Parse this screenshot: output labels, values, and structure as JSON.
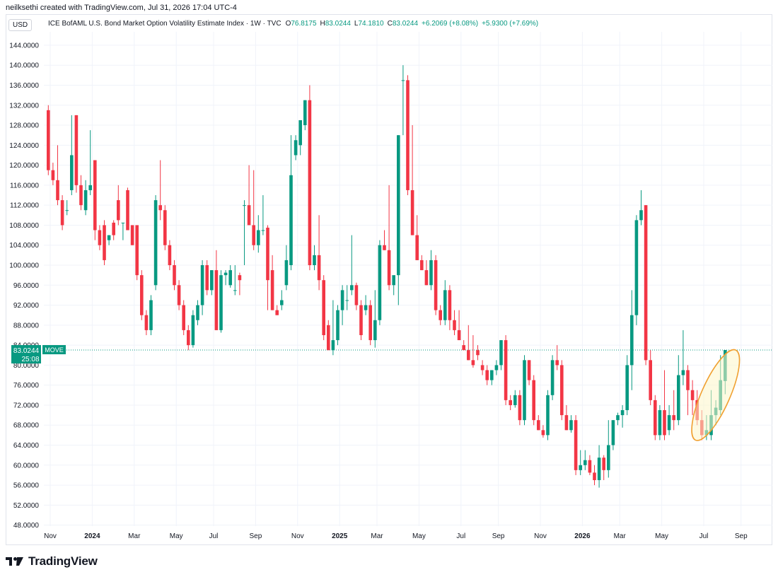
{
  "header": {
    "credit": "neilksethi created with TradingView.com, Jul 31, 2026 17:04 UTC-4",
    "currency": "USD"
  },
  "legend": {
    "name": "ICE BofAML U.S. Bond Market Option Volatility Estimate Index · 1W · TVC",
    "o_label": "O",
    "o_value": "76.8175",
    "h_label": "H",
    "h_value": "83.0244",
    "l_label": "L",
    "l_value": "74.1810",
    "c_label": "C",
    "c_value": "83.0244",
    "change": "+6.2069 (+8.08%)",
    "change2": "+5.9300 (+7.69%)"
  },
  "price_tag": {
    "value": "83.0244",
    "symbol": "MOVE",
    "countdown": "25:08"
  },
  "brand": {
    "logo_text": "TradingView",
    "logo_icon": "tradingview-logo-icon"
  },
  "colors": {
    "up": "#089981",
    "down": "#f23645",
    "grid": "#f0f3fa",
    "highlight_stroke": "#f0a030",
    "highlight_fill": "#fdf6c8"
  },
  "chart_data": {
    "type": "candlestick",
    "interval": "1W",
    "ylim": [
      46,
      146
    ],
    "y_ticks": [
      "48.0000",
      "52.0000",
      "56.0000",
      "60.0000",
      "64.0000",
      "68.0000",
      "72.0000",
      "76.0000",
      "80.0000",
      "84.0000",
      "88.0000",
      "92.0000",
      "96.0000",
      "100.0000",
      "104.0000",
      "108.0000",
      "112.0000",
      "116.0000",
      "120.0000",
      "124.0000",
      "128.0000",
      "132.0000",
      "136.0000",
      "140.0000",
      "144.0000"
    ],
    "x_ticks": [
      "Nov",
      "2024",
      "Mar",
      "May",
      "Jul",
      "Sep",
      "Nov",
      "2025",
      "Mar",
      "May",
      "Jul",
      "Sep",
      "Nov",
      "2026",
      "Mar",
      "May",
      "Jul",
      "Sep"
    ],
    "x_tick_bar_index": [
      0,
      9,
      18,
      27,
      35,
      44,
      53,
      62,
      70,
      79,
      88,
      96,
      105,
      114,
      122,
      131,
      140,
      148
    ],
    "last_close": 83.0244,
    "highlight": "ellipse around the last six weekly candles",
    "candles": [
      [
        131.0,
        132.0,
        118.0,
        119.0
      ],
      [
        119.0,
        120.5,
        116.0,
        117.0
      ],
      [
        117.0,
        124.0,
        112.0,
        113.0
      ],
      [
        113.0,
        114.0,
        107.0,
        108.0
      ],
      [
        111.0,
        113.0,
        110.0,
        111.0
      ],
      [
        115.0,
        130.0,
        114.0,
        122.0
      ],
      [
        130.0,
        130.0,
        114.5,
        116.0
      ],
      [
        116.0,
        118.0,
        111.0,
        112.0
      ],
      [
        111.0,
        117.0,
        110.0,
        115.0
      ],
      [
        115.0,
        127.0,
        114.0,
        116.0
      ],
      [
        121.0,
        121.0,
        105.0,
        107.0
      ],
      [
        107.0,
        108.0,
        103.0,
        104.0
      ],
      [
        108.0,
        109.0,
        100.0,
        101.0
      ],
      [
        105.0,
        106.0,
        104.0,
        106.0
      ],
      [
        108.5,
        109.0,
        105.0,
        106.0
      ],
      [
        113.0,
        116.0,
        108.0,
        109.0
      ],
      [
        108.5,
        108.5,
        105.0,
        108.5
      ],
      [
        115.0,
        115.5,
        107.0,
        107.0
      ],
      [
        108.0,
        108.0,
        104.0,
        104.0
      ],
      [
        108.0,
        108.0,
        97.0,
        98.0
      ],
      [
        98.0,
        99.0,
        89.0,
        90.0
      ],
      [
        90.0,
        91.0,
        86.0,
        87.0
      ],
      [
        87.0,
        94.0,
        86.0,
        93.0
      ],
      [
        96.0,
        114.0,
        95.0,
        113.0
      ],
      [
        112.0,
        121.0,
        109.0,
        111.0
      ],
      [
        111.0,
        112.0,
        103.0,
        104.0
      ],
      [
        104.0,
        105.0,
        99.0,
        100.0
      ],
      [
        100.0,
        101.0,
        95.0,
        96.0
      ],
      [
        96.0,
        97.0,
        91.0,
        92.0
      ],
      [
        92.0,
        93.0,
        86.0,
        87.0
      ],
      [
        87.0,
        88.0,
        83.0,
        84.0
      ],
      [
        84.0,
        91.0,
        83.5,
        90.0
      ],
      [
        89.0,
        93.0,
        88.0,
        92.0
      ],
      [
        92.0,
        101.0,
        90.0,
        100.0
      ],
      [
        100.0,
        101.0,
        94.0,
        95.0
      ],
      [
        95.0,
        99.0,
        94.0,
        99.0
      ],
      [
        99.0,
        103.0,
        87.0,
        87.0
      ],
      [
        87.0,
        99.0,
        86.5,
        98.0
      ],
      [
        98.0,
        99.0,
        96.0,
        98.5
      ],
      [
        96.0,
        100.0,
        95.5,
        99.0
      ],
      [
        95.0,
        100.0,
        94.0,
        95.0
      ],
      [
        98.0,
        98.5,
        94.0,
        97.0
      ],
      [
        112.0,
        113.0,
        100.0,
        112.0
      ],
      [
        112.0,
        120.0,
        109.0,
        108.0
      ],
      [
        108.0,
        119.0,
        103.0,
        104.0
      ],
      [
        104.0,
        110.0,
        102.5,
        107.0
      ],
      [
        107.0,
        114.0,
        106.0,
        107.0
      ],
      [
        107.5,
        108.0,
        91.0,
        97.0
      ],
      [
        99.0,
        102.0,
        91.0,
        91.0
      ],
      [
        91.0,
        92.0,
        90.0,
        90.0
      ],
      [
        92.0,
        95.0,
        91.0,
        93.0
      ],
      [
        96.0,
        104.0,
        95.0,
        101.0
      ],
      [
        100.0,
        126.0,
        99.0,
        118.0
      ],
      [
        122.0,
        126.0,
        121.0,
        125.0
      ],
      [
        124.0,
        129.0,
        122.0,
        129.0
      ],
      [
        128.0,
        133.0,
        127.0,
        133.0
      ],
      [
        133.0,
        136.0,
        99.0,
        100.0
      ],
      [
        100.0,
        104.0,
        99.0,
        102.0
      ],
      [
        102.0,
        110.0,
        95.0,
        97.0
      ],
      [
        97.0,
        98.0,
        85.0,
        86.0
      ],
      [
        88.0,
        89.0,
        83.0,
        83.0
      ],
      [
        83.0,
        93.0,
        82.0,
        85.0
      ],
      [
        85.0,
        92.0,
        84.0,
        91.0
      ],
      [
        91.0,
        96.0,
        88.0,
        95.0
      ],
      [
        93.0,
        96.0,
        91.0,
        93.0
      ],
      [
        95.0,
        106.0,
        94.0,
        96.0
      ],
      [
        96.0,
        96.5,
        91.0,
        92.0
      ],
      [
        92.0,
        93.0,
        85.0,
        86.0
      ],
      [
        91.0,
        94.0,
        90.0,
        92.0
      ],
      [
        92.0,
        93.0,
        84.0,
        85.0
      ],
      [
        85.0,
        95.0,
        83.5,
        89.0
      ],
      [
        89.0,
        105.0,
        88.0,
        104.0
      ],
      [
        104.0,
        107.0,
        103.0,
        103.0
      ],
      [
        103.0,
        116.0,
        95.0,
        96.0
      ],
      [
        96.0,
        97.0,
        94.0,
        98.0
      ],
      [
        98.0,
        126.0,
        92.0,
        126.0
      ],
      [
        137.0,
        140.0,
        126.0,
        137.0
      ],
      [
        137.0,
        138.0,
        114.0,
        115.0
      ],
      [
        115.0,
        128.0,
        106.0,
        106.0
      ],
      [
        106.0,
        110.0,
        101.0,
        101.0
      ],
      [
        101.0,
        102.0,
        99.0,
        99.0
      ],
      [
        99.0,
        101.0,
        96.0,
        96.0
      ],
      [
        96.0,
        103.0,
        95.0,
        101.0
      ],
      [
        101.0,
        102.0,
        90.0,
        91.0
      ],
      [
        91.0,
        92.0,
        88.0,
        89.0
      ],
      [
        89.0,
        97.0,
        88.0,
        95.0
      ],
      [
        95.0,
        96.0,
        87.0,
        89.0
      ],
      [
        89.0,
        91.0,
        86.0,
        87.0
      ],
      [
        87.0,
        91.0,
        85.0,
        85.0
      ],
      [
        84.0,
        85.0,
        83.0,
        83.0
      ],
      [
        83.0,
        88.0,
        81.0,
        81.0
      ],
      [
        81.0,
        86.0,
        79.5,
        80.0
      ],
      [
        83.0,
        84.0,
        81.0,
        82.0
      ],
      [
        80.0,
        81.0,
        78.0,
        79.0
      ],
      [
        79.0,
        80.0,
        76.0,
        77.0
      ],
      [
        77.0,
        79.0,
        76.0,
        79.0
      ],
      [
        79.0,
        81.0,
        78.0,
        80.0
      ],
      [
        80.0,
        85.0,
        79.0,
        85.0
      ],
      [
        85.0,
        86.0,
        72.0,
        73.0
      ],
      [
        73.0,
        74.0,
        71.0,
        72.0
      ],
      [
        72.0,
        75.0,
        71.5,
        74.0
      ],
      [
        74.0,
        75.0,
        68.0,
        69.0
      ],
      [
        69.0,
        82.0,
        68.0,
        81.0
      ],
      [
        81.0,
        81.0,
        76.0,
        77.0
      ],
      [
        77.0,
        78.0,
        68.0,
        69.0
      ],
      [
        69.0,
        70.0,
        67.0,
        67.0
      ],
      [
        67.0,
        68.0,
        65.5,
        66.0
      ],
      [
        66.0,
        75.0,
        65.0,
        74.0
      ],
      [
        74.0,
        82.0,
        73.0,
        81.0
      ],
      [
        81.0,
        84.0,
        79.0,
        80.0
      ],
      [
        80.0,
        81.0,
        69.0,
        70.0
      ],
      [
        70.0,
        72.0,
        67.0,
        67.0
      ],
      [
        67.0,
        70.0,
        66.5,
        69.0
      ],
      [
        69.0,
        70.0,
        58.0,
        59.0
      ],
      [
        59.0,
        63.0,
        58.0,
        60.0
      ],
      [
        60.0,
        63.0,
        59.0,
        61.0
      ],
      [
        61.0,
        62.0,
        58.0,
        58.5
      ],
      [
        58.5,
        60.0,
        56.0,
        57.0
      ],
      [
        57.0,
        64.0,
        55.5,
        61.5
      ],
      [
        61.5,
        62.0,
        57.0,
        59.0
      ],
      [
        59.0,
        69.0,
        57.5,
        64.0
      ],
      [
        64.0,
        69.0,
        63.0,
        69.0
      ],
      [
        69.0,
        70.5,
        68.0,
        70.0
      ],
      [
        70.0,
        72.0,
        67.5,
        71.0
      ],
      [
        71.0,
        82.0,
        70.0,
        80.0
      ],
      [
        80.0,
        95.0,
        75.0,
        90.0
      ],
      [
        90.0,
        110.0,
        88.0,
        109.0
      ],
      [
        109.0,
        115.0,
        108.0,
        111.0
      ],
      [
        112.0,
        112.0,
        80.0,
        81.0
      ],
      [
        81.0,
        83.0,
        72.0,
        73.0
      ],
      [
        73.0,
        74.0,
        65.0,
        66.0
      ],
      [
        66.0,
        72.0,
        65.0,
        71.0
      ],
      [
        71.0,
        79.0,
        65.0,
        66.0
      ],
      [
        67.0,
        72.0,
        66.0,
        70.0
      ],
      [
        70.0,
        75.0,
        67.0,
        69.0
      ],
      [
        69.0,
        82.0,
        68.0,
        78.0
      ],
      [
        78.0,
        87.0,
        76.0,
        79.0
      ],
      [
        79.0,
        80.0,
        70.0,
        75.0
      ],
      [
        75.0,
        77.0,
        70.0,
        73.0
      ],
      [
        73.0,
        75.0,
        68.0,
        69.0
      ],
      [
        69.0,
        71.0,
        65.0,
        66.0
      ],
      [
        66.0,
        70.0,
        65.0,
        67.0
      ],
      [
        66.0,
        75.0,
        65.0,
        70.0
      ],
      [
        70.0,
        73.0,
        68.0,
        71.5
      ],
      [
        71.0,
        82.0,
        70.0,
        77.0
      ],
      [
        76.8175,
        83.0244,
        74.181,
        83.0244
      ]
    ]
  }
}
